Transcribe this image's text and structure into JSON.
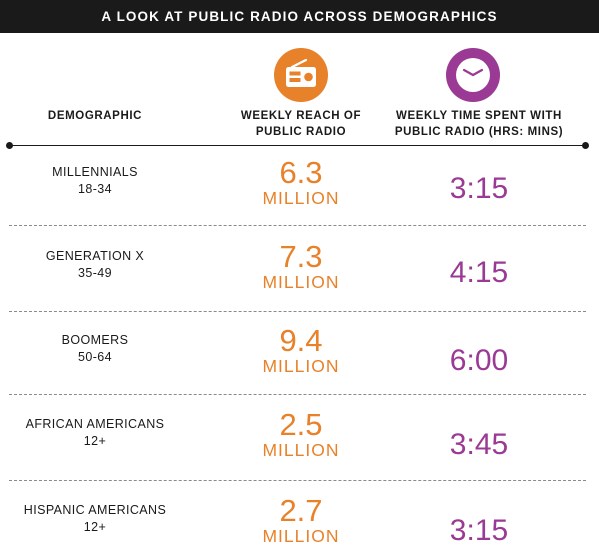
{
  "title": "A LOOK AT PUBLIC RADIO ACROSS DEMOGRAPHICS",
  "headers": {
    "demographic": "DEMOGRAPHIC",
    "reach_line1": "WEEKLY REACH OF",
    "reach_line2": "PUBLIC RADIO",
    "time_line1": "WEEKLY TIME SPENT WITH",
    "time_line2": "PUBLIC RADIO (HRS: MINS)"
  },
  "icons": {
    "reach": "radio-icon",
    "time": "clock-icon"
  },
  "colors": {
    "reach": "#e8822a",
    "time": "#9a3a94",
    "title_bg": "#1a1a1a"
  },
  "chart_data": {
    "type": "table",
    "title": "A LOOK AT PUBLIC RADIO ACROSS DEMOGRAPHICS",
    "columns": [
      "DEMOGRAPHIC",
      "WEEKLY REACH OF PUBLIC RADIO",
      "WEEKLY TIME SPENT WITH PUBLIC RADIO (HRS: MINS)"
    ],
    "rows": [
      {
        "demographic": "MILLENNIALS",
        "age": "18-34",
        "reach": "6.3",
        "reach_unit": "MILLION",
        "time": "3:15"
      },
      {
        "demographic": "GENERATION X",
        "age": "35-49",
        "reach": "7.3",
        "reach_unit": "MILLION",
        "time": "4:15"
      },
      {
        "demographic": "BOOMERS",
        "age": "50-64",
        "reach": "9.4",
        "reach_unit": "MILLION",
        "time": "6:00"
      },
      {
        "demographic": "AFRICAN AMERICANS",
        "age": "12+",
        "reach": "2.5",
        "reach_unit": "MILLION",
        "time": "3:45"
      },
      {
        "demographic": "HISPANIC AMERICANS",
        "age": "12+",
        "reach": "2.7",
        "reach_unit": "MILLION",
        "time": "3:15"
      }
    ]
  }
}
